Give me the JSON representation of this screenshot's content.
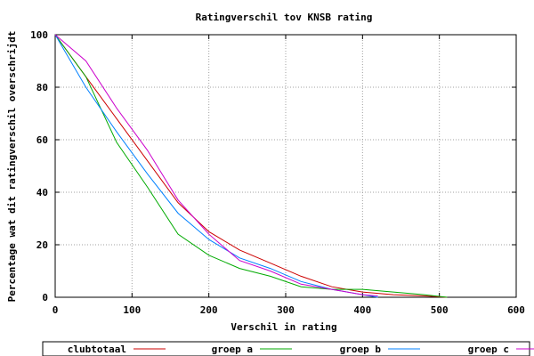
{
  "chart_data": {
    "type": "line",
    "title": "Ratingverschil tov KNSB rating",
    "xlabel": "Verschil in rating",
    "ylabel": "Percentage wat dit ratingverschil overschrijdt",
    "xlim": [
      0,
      600
    ],
    "ylim": [
      0,
      100
    ],
    "xticks": [
      "0",
      "100",
      "200",
      "300",
      "400",
      "500",
      "600"
    ],
    "yticks": [
      "0",
      "20",
      "40",
      "60",
      "80",
      "100"
    ],
    "grid": true,
    "legend_position": "bottom",
    "series": [
      {
        "name": "clubtotaal",
        "color": "#cc0000",
        "points": [
          [
            0,
            100
          ],
          [
            40,
            84
          ],
          [
            80,
            68
          ],
          [
            120,
            52
          ],
          [
            160,
            36
          ],
          [
            200,
            25
          ],
          [
            240,
            18
          ],
          [
            280,
            13
          ],
          [
            320,
            8
          ],
          [
            360,
            4
          ],
          [
            400,
            2
          ],
          [
            440,
            1
          ],
          [
            480,
            0.5
          ],
          [
            510,
            0
          ]
        ]
      },
      {
        "name": "groep a",
        "color": "#00aa00",
        "points": [
          [
            0,
            100
          ],
          [
            40,
            84
          ],
          [
            80,
            59
          ],
          [
            120,
            42
          ],
          [
            160,
            24
          ],
          [
            200,
            16
          ],
          [
            240,
            11
          ],
          [
            280,
            8
          ],
          [
            320,
            4
          ],
          [
            360,
            3
          ],
          [
            400,
            3
          ],
          [
            440,
            2
          ],
          [
            480,
            1
          ],
          [
            510,
            0
          ]
        ]
      },
      {
        "name": "groep b",
        "color": "#0080ff",
        "points": [
          [
            0,
            100
          ],
          [
            40,
            80
          ],
          [
            80,
            63
          ],
          [
            120,
            47
          ],
          [
            160,
            32
          ],
          [
            200,
            22
          ],
          [
            240,
            15
          ],
          [
            280,
            11
          ],
          [
            320,
            6
          ],
          [
            360,
            3
          ],
          [
            400,
            1
          ],
          [
            420,
            0
          ]
        ]
      },
      {
        "name": "groep c",
        "color": "#cc00cc",
        "points": [
          [
            0,
            100
          ],
          [
            40,
            90
          ],
          [
            80,
            72
          ],
          [
            120,
            56
          ],
          [
            160,
            37
          ],
          [
            200,
            24
          ],
          [
            240,
            14
          ],
          [
            280,
            10
          ],
          [
            320,
            5
          ],
          [
            360,
            3
          ],
          [
            400,
            1
          ],
          [
            420,
            0.5
          ]
        ]
      }
    ]
  }
}
